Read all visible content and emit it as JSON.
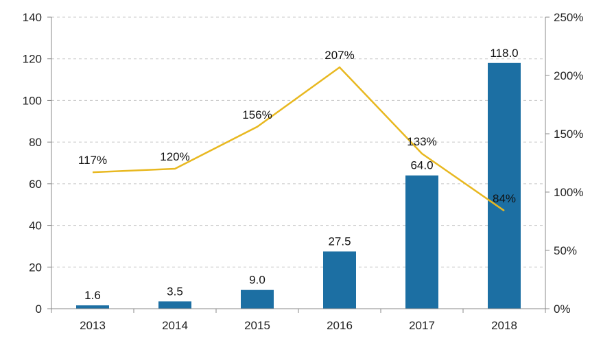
{
  "chart_data": {
    "type": "bar",
    "categories": [
      "2013",
      "2014",
      "2015",
      "2016",
      "2017",
      "2018"
    ],
    "series": [
      {
        "type": "bar",
        "axis": "left",
        "values": [
          1.6,
          3.5,
          9.0,
          27.5,
          64.0,
          118.0
        ],
        "data_labels": [
          "1.6",
          "3.5",
          "9.0",
          "27.5",
          "64.0",
          "118.0"
        ]
      },
      {
        "type": "line",
        "axis": "right",
        "values": [
          117,
          120,
          156,
          207,
          133,
          84
        ],
        "data_labels": [
          "117%",
          "120%",
          "156%",
          "207%",
          "133%",
          "84%"
        ]
      }
    ],
    "y_left": {
      "ylim": [
        0,
        140
      ],
      "ticks": [
        "0",
        "20",
        "40",
        "60",
        "80",
        "100",
        "120",
        "140"
      ]
    },
    "y_right": {
      "ylim": [
        0,
        250
      ],
      "ticks": [
        "0%",
        "50%",
        "100%",
        "150%",
        "200%",
        "250%"
      ]
    },
    "grid": true,
    "legend": "none",
    "colors": {
      "bar": "#1c6fa3",
      "line": "#e8b820"
    }
  }
}
